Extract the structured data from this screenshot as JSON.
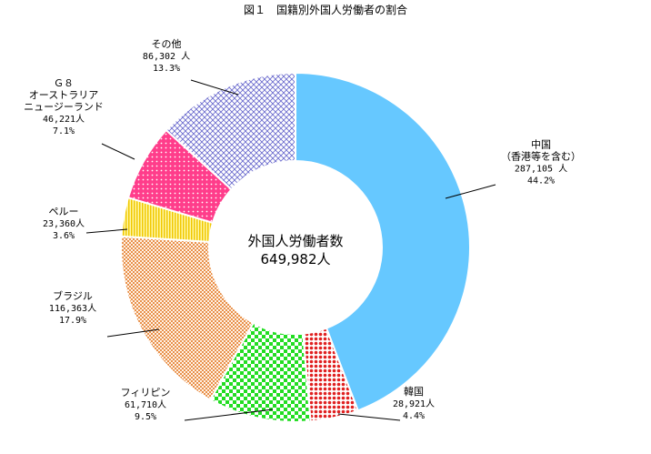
{
  "chart_data": {
    "type": "pie",
    "style": "donut",
    "title": "図１　国籍別外国人労働者の割合",
    "center_label": "外国人労働者数",
    "center_value": "649,982人",
    "slices": [
      {
        "label_lines": [
          "中国",
          "（香港等を含む）"
        ],
        "count": "287,105 人",
        "percent": "44.2%",
        "value": 287105,
        "pct": 44.2,
        "color": "#66c8ff",
        "pattern": "solid"
      },
      {
        "label_lines": [
          "韓国"
        ],
        "count": "28,921人",
        "percent": "4.4%",
        "value": 28921,
        "pct": 4.4,
        "color": "#e02020",
        "pattern": "dots"
      },
      {
        "label_lines": [
          "フィリピン"
        ],
        "count": "61,710人",
        "percent": "9.5%",
        "value": 61710,
        "pct": 9.5,
        "color": "#22dd22",
        "pattern": "checker"
      },
      {
        "label_lines": [
          "ブラジル"
        ],
        "count": "116,363人",
        "percent": "17.9%",
        "value": 116363,
        "pct": 17.9,
        "color": "#e8904a",
        "pattern": "fine"
      },
      {
        "label_lines": [
          "ペルー"
        ],
        "count": "23,360人",
        "percent": "3.6%",
        "value": 23360,
        "pct": 3.6,
        "color": "#ffdd00",
        "pattern": "vstripes"
      },
      {
        "label_lines": [
          "Ｇ８",
          "オーストラリア",
          "ニュージーランド"
        ],
        "count": "46,221人",
        "percent": "7.1%",
        "value": 46221,
        "pct": 7.1,
        "color": "#ff3d8b",
        "pattern": "dots"
      },
      {
        "label_lines": [
          "その他"
        ],
        "count": "86,302 人",
        "percent": "13.3%",
        "value": 86302,
        "pct": 13.3,
        "color": "#6666cc",
        "pattern": "crosshatch"
      }
    ],
    "legend": "none"
  }
}
